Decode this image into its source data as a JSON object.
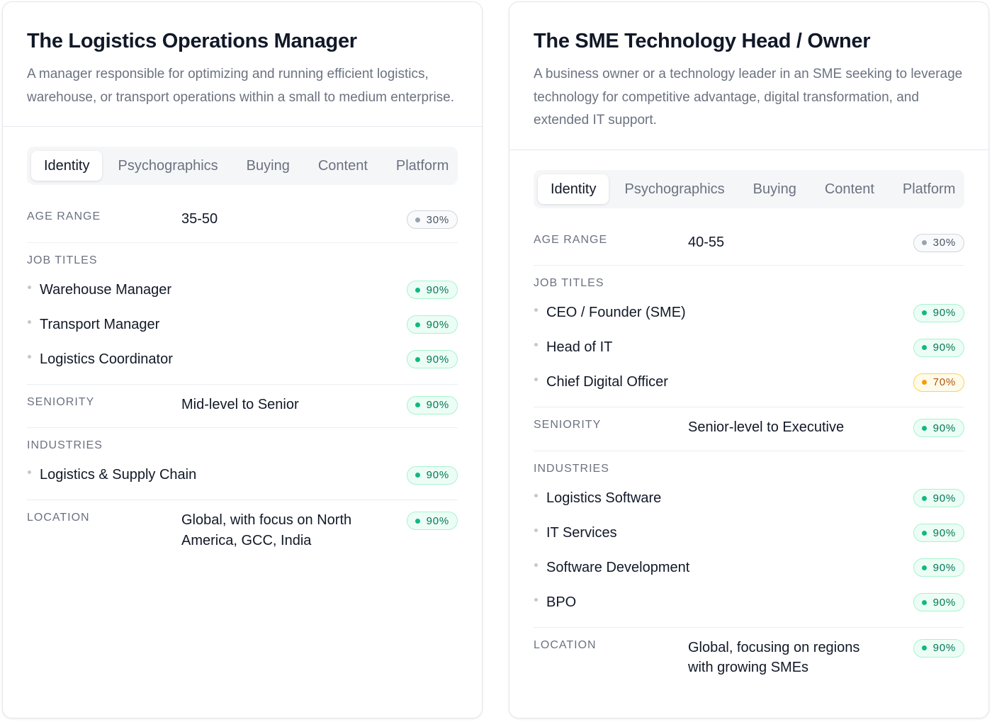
{
  "cards": [
    {
      "title": "The Logistics Operations Manager",
      "description": "A manager responsible for optimizing and running efficient logistics, warehouse, or transport operations within a small to medium enterprise.",
      "tabs": [
        "Identity",
        "Psychographics",
        "Buying",
        "Content",
        "Platform"
      ],
      "active_tab": 0,
      "sections": [
        {
          "label": "AGE RANGE",
          "value": "35-50",
          "badge": "30%",
          "tone": "gray"
        },
        {
          "label": "JOB TITLES",
          "items": [
            {
              "text": "Warehouse Manager",
              "badge": "90%",
              "tone": "green"
            },
            {
              "text": "Transport Manager",
              "badge": "90%",
              "tone": "green"
            },
            {
              "text": "Logistics Coordinator",
              "badge": "90%",
              "tone": "green"
            }
          ]
        },
        {
          "label": "SENIORITY",
          "value": "Mid-level to Senior",
          "badge": "90%",
          "tone": "green"
        },
        {
          "label": "INDUSTRIES",
          "items": [
            {
              "text": "Logistics & Supply Chain",
              "badge": "90%",
              "tone": "green"
            }
          ]
        },
        {
          "label": "LOCATION",
          "value": "Global, with focus on North America, GCC, India",
          "badge": "90%",
          "tone": "green"
        }
      ]
    },
    {
      "title": "The SME Technology Head / Owner",
      "description": "A business owner or a technology leader in an SME seeking to leverage technology for competitive advantage, digital transformation, and extended IT support.",
      "tabs": [
        "Identity",
        "Psychographics",
        "Buying",
        "Content",
        "Platform"
      ],
      "active_tab": 0,
      "sections": [
        {
          "label": "AGE RANGE",
          "value": "40-55",
          "badge": "30%",
          "tone": "gray"
        },
        {
          "label": "JOB TITLES",
          "items": [
            {
              "text": "CEO / Founder (SME)",
              "badge": "90%",
              "tone": "green"
            },
            {
              "text": "Head of IT",
              "badge": "90%",
              "tone": "green"
            },
            {
              "text": "Chief Digital Officer",
              "badge": "70%",
              "tone": "amber"
            }
          ]
        },
        {
          "label": "SENIORITY",
          "value": "Senior-level to Executive",
          "badge": "90%",
          "tone": "green"
        },
        {
          "label": "INDUSTRIES",
          "items": [
            {
              "text": "Logistics Software",
              "badge": "90%",
              "tone": "green"
            },
            {
              "text": "IT Services",
              "badge": "90%",
              "tone": "green"
            },
            {
              "text": "Software Development",
              "badge": "90%",
              "tone": "green"
            },
            {
              "text": "BPO",
              "badge": "90%",
              "tone": "green"
            }
          ]
        },
        {
          "label": "LOCATION",
          "value": "Global, focusing on regions with growing SMEs",
          "badge": "90%",
          "tone": "green"
        }
      ]
    }
  ]
}
